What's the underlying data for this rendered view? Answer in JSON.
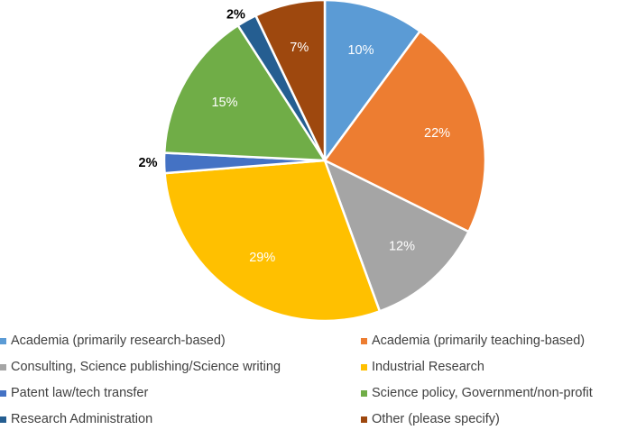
{
  "chart_data": {
    "type": "pie",
    "title": "",
    "categories": [
      "Academia (primarily research-based)",
      "Academia (primarily teaching-based)",
      "Consulting, Science publishing/Science writing",
      "Industrial Research",
      "Patent law/tech transfer",
      "Science policy, Government/non-profit",
      "Research Administration",
      "Other (please specify)"
    ],
    "values": [
      10,
      22,
      12,
      29,
      2,
      15,
      2,
      7
    ],
    "data_labels": [
      "10%",
      "22%",
      "12%",
      "29%",
      "2%",
      "15%",
      "2%",
      "7%"
    ],
    "colors": [
      "#5B9BD5",
      "#ED7D31",
      "#A5A5A5",
      "#FFC000",
      "#4472C4",
      "#70AD47",
      "#255E91",
      "#9E480E"
    ],
    "legend_position": "bottom"
  }
}
